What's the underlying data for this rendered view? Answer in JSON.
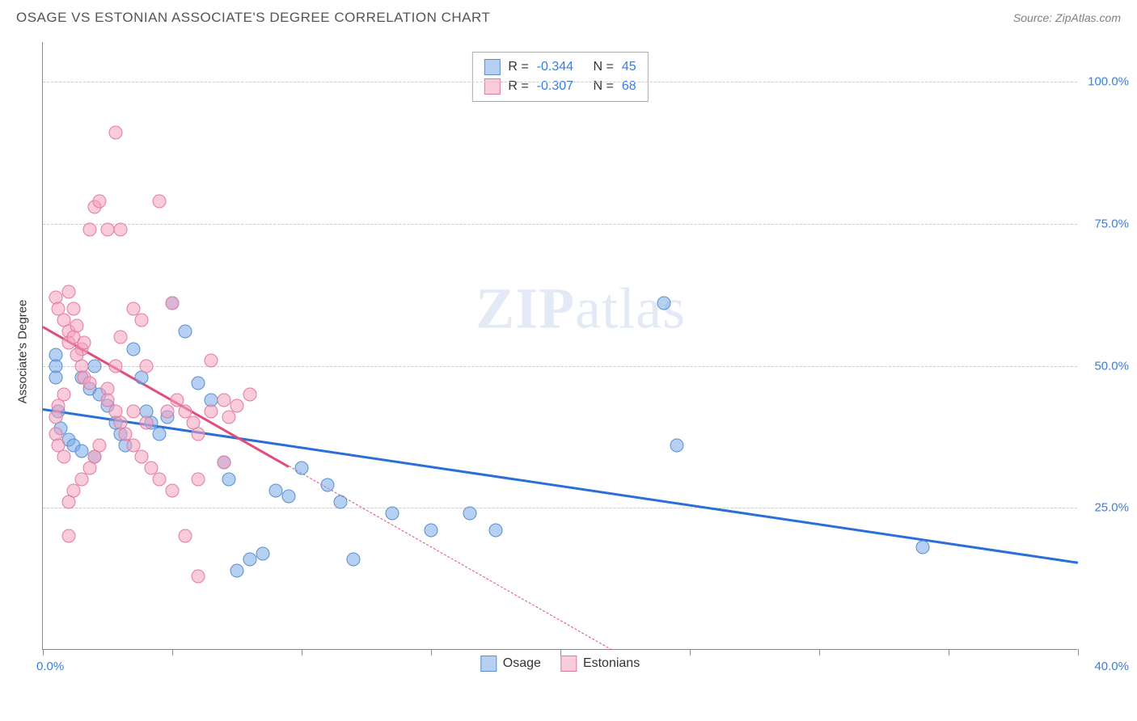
{
  "title": "OSAGE VS ESTONIAN ASSOCIATE'S DEGREE CORRELATION CHART",
  "source": "Source: ZipAtlas.com",
  "watermark_zip": "ZIP",
  "watermark_atlas": "atlas",
  "chart": {
    "type": "scatter",
    "background_color": "#ffffff",
    "grid_color": "#cccccc",
    "axis_color": "#888888",
    "xlim": [
      0,
      40
    ],
    "ylim": [
      0,
      107
    ],
    "x_tick_positions": [
      0,
      5,
      10,
      15,
      20,
      25,
      30,
      35,
      40
    ],
    "x_tick_labels": {
      "0": "0.0%",
      "40": "40.0%"
    },
    "y_grid_positions": [
      25,
      50,
      75,
      100
    ],
    "y_tick_labels": {
      "25": "25.0%",
      "50": "50.0%",
      "75": "75.0%",
      "100": "100.0%"
    },
    "y_axis_title": "Associate's Degree",
    "marker_radius": 8.5,
    "series": [
      {
        "name": "Osage",
        "fill_color": "rgba(120, 170, 230, 0.55)",
        "stroke_color": "#5a8fd0",
        "trend_color": "#2a6fd6",
        "r_label": "R =",
        "r_value": "-0.344",
        "n_label": "N =",
        "n_value": "45",
        "trend": {
          "x1": 0,
          "y1": 42.5,
          "x2": 40,
          "y2": 15.5,
          "dash_from_x": null
        },
        "points": [
          [
            0.5,
            52
          ],
          [
            0.5,
            50
          ],
          [
            0.5,
            48
          ],
          [
            0.6,
            42
          ],
          [
            0.7,
            39
          ],
          [
            1.0,
            37
          ],
          [
            1.2,
            36
          ],
          [
            1.5,
            35
          ],
          [
            1.5,
            48
          ],
          [
            1.8,
            46
          ],
          [
            2.0,
            34
          ],
          [
            2.2,
            45
          ],
          [
            2.5,
            43
          ],
          [
            2.8,
            40
          ],
          [
            3.0,
            38
          ],
          [
            3.2,
            36
          ],
          [
            3.5,
            53
          ],
          [
            4.0,
            42
          ],
          [
            4.2,
            40
          ],
          [
            4.5,
            38
          ],
          [
            5.0,
            61
          ],
          [
            5.5,
            56
          ],
          [
            6.0,
            47
          ],
          [
            6.5,
            44
          ],
          [
            7.0,
            33
          ],
          [
            7.2,
            30
          ],
          [
            7.5,
            14
          ],
          [
            8.0,
            16
          ],
          [
            8.5,
            17
          ],
          [
            9.0,
            28
          ],
          [
            9.5,
            27
          ],
          [
            10.0,
            32
          ],
          [
            11.0,
            29
          ],
          [
            11.5,
            26
          ],
          [
            12.0,
            16
          ],
          [
            13.5,
            24
          ],
          [
            15.0,
            21
          ],
          [
            16.5,
            24
          ],
          [
            17.5,
            21
          ],
          [
            24.0,
            61
          ],
          [
            24.5,
            36
          ],
          [
            34.0,
            18
          ],
          [
            4.8,
            41
          ],
          [
            3.8,
            48
          ],
          [
            2.0,
            50
          ]
        ]
      },
      {
        "name": "Estonians",
        "fill_color": "rgba(245, 160, 190, 0.55)",
        "stroke_color": "#e07ba0",
        "trend_color": "#e34d7a",
        "r_label": "R =",
        "r_value": "-0.307",
        "n_label": "N =",
        "n_value": "68",
        "trend": {
          "x1": 0,
          "y1": 57,
          "x2": 22,
          "y2": 0,
          "dash_from_x": 9.5
        },
        "points": [
          [
            0.5,
            62
          ],
          [
            0.6,
            60
          ],
          [
            0.8,
            58
          ],
          [
            1.0,
            56
          ],
          [
            1.0,
            54
          ],
          [
            1.2,
            55
          ],
          [
            1.3,
            57
          ],
          [
            1.5,
            53
          ],
          [
            1.5,
            50
          ],
          [
            1.6,
            48
          ],
          [
            1.8,
            47
          ],
          [
            1.8,
            74
          ],
          [
            2.0,
            78
          ],
          [
            2.2,
            79
          ],
          [
            2.5,
            46
          ],
          [
            2.5,
            44
          ],
          [
            2.8,
            42
          ],
          [
            2.8,
            91
          ],
          [
            3.0,
            40
          ],
          [
            3.0,
            74
          ],
          [
            3.2,
            38
          ],
          [
            3.5,
            36
          ],
          [
            3.5,
            60
          ],
          [
            3.8,
            34
          ],
          [
            4.0,
            50
          ],
          [
            4.2,
            32
          ],
          [
            4.5,
            30
          ],
          [
            4.5,
            79
          ],
          [
            5.0,
            61
          ],
          [
            5.2,
            44
          ],
          [
            5.5,
            42
          ],
          [
            5.8,
            40
          ],
          [
            6.0,
            38
          ],
          [
            6.0,
            13
          ],
          [
            6.5,
            51
          ],
          [
            7.0,
            33
          ],
          [
            7.2,
            41
          ],
          [
            7.5,
            43
          ],
          [
            8.0,
            45
          ],
          [
            1.0,
            26
          ],
          [
            1.2,
            28
          ],
          [
            1.5,
            30
          ],
          [
            1.8,
            32
          ],
          [
            2.0,
            34
          ],
          [
            2.2,
            36
          ],
          [
            1.0,
            20
          ],
          [
            0.8,
            45
          ],
          [
            0.6,
            43
          ],
          [
            0.5,
            41
          ],
          [
            0.5,
            38
          ],
          [
            0.6,
            36
          ],
          [
            0.8,
            34
          ],
          [
            1.0,
            63
          ],
          [
            1.2,
            60
          ],
          [
            2.5,
            74
          ],
          [
            3.0,
            55
          ],
          [
            3.5,
            42
          ],
          [
            4.0,
            40
          ],
          [
            4.8,
            42
          ],
          [
            5.0,
            28
          ],
          [
            5.5,
            20
          ],
          [
            6.0,
            30
          ],
          [
            6.5,
            42
          ],
          [
            7.0,
            44
          ],
          [
            1.3,
            52
          ],
          [
            1.6,
            54
          ],
          [
            2.8,
            50
          ],
          [
            3.8,
            58
          ]
        ]
      }
    ]
  },
  "legend": {
    "series1_label": "Osage",
    "series2_label": "Estonians"
  }
}
